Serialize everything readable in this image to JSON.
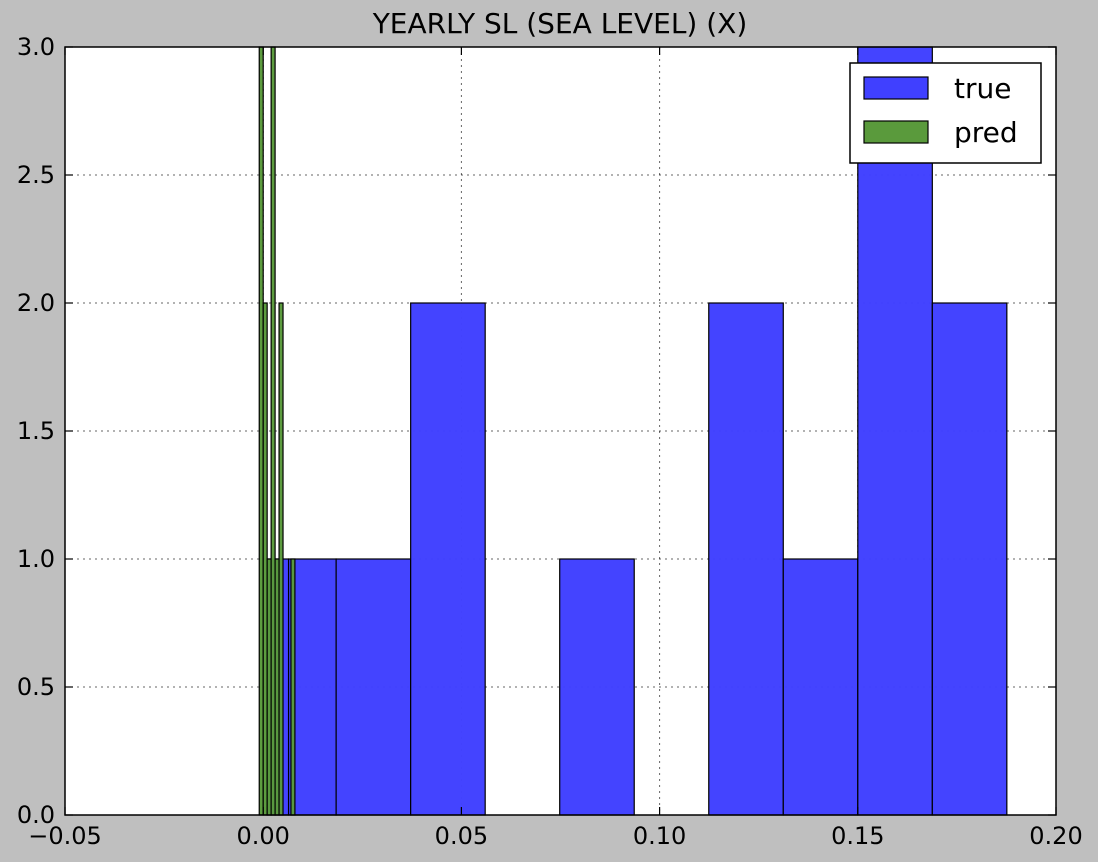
{
  "chart_data": {
    "type": "bar",
    "title": "YEARLY SL (SEA LEVEL) (X)",
    "xlabel": "",
    "ylabel": "",
    "xlim": [
      -0.05,
      0.2
    ],
    "ylim": [
      0.0,
      3.0
    ],
    "xticks": [
      "−0.05",
      "0.00",
      "0.05",
      "0.10",
      "0.15",
      "0.20"
    ],
    "yticks": [
      "0.0",
      "0.5",
      "1.0",
      "1.5",
      "2.0",
      "2.5",
      "3.0"
    ],
    "grid": true,
    "legend_position": "top-right",
    "series": [
      {
        "name": "true",
        "color": "#4040ff",
        "bins": [
          {
            "x0": 0.0012,
            "x1": 0.0064,
            "count": 1
          },
          {
            "x0": 0.0064,
            "x1": 0.0184,
            "count": 1
          },
          {
            "x0": 0.0184,
            "x1": 0.0372,
            "count": 1
          },
          {
            "x0": 0.0372,
            "x1": 0.056,
            "count": 2
          },
          {
            "x0": 0.0748,
            "x1": 0.0936,
            "count": 1
          },
          {
            "x0": 0.1124,
            "x1": 0.1312,
            "count": 2
          },
          {
            "x0": 0.1312,
            "x1": 0.15,
            "count": 1
          },
          {
            "x0": 0.15,
            "x1": 0.1688,
            "count": 3
          },
          {
            "x0": 0.1688,
            "x1": 0.1876,
            "count": 2
          }
        ]
      },
      {
        "name": "pred",
        "color": "#5a9a3c",
        "bins": [
          {
            "x0": -0.001,
            "x1": 0.0,
            "count": 3
          },
          {
            "x0": 0.0,
            "x1": 0.001,
            "count": 2
          },
          {
            "x0": 0.001,
            "x1": 0.002,
            "count": 1
          },
          {
            "x0": 0.002,
            "x1": 0.003,
            "count": 3
          },
          {
            "x0": 0.003,
            "x1": 0.004,
            "count": 1
          },
          {
            "x0": 0.004,
            "x1": 0.005,
            "count": 2
          },
          {
            "x0": 0.007,
            "x1": 0.008,
            "count": 1
          }
        ]
      }
    ]
  }
}
